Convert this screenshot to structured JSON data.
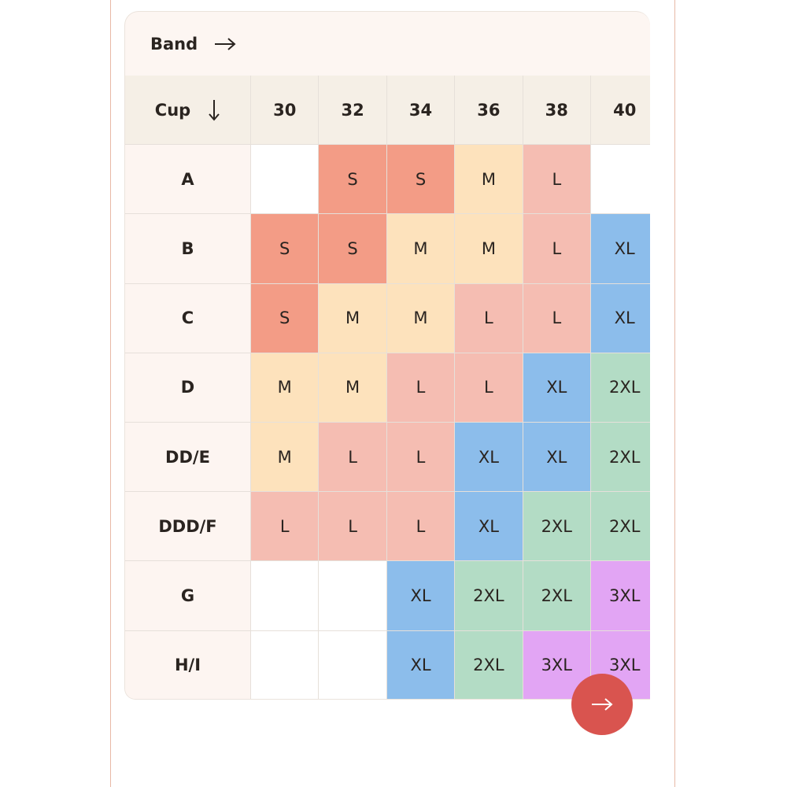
{
  "header": {
    "band_label": "Band"
  },
  "table": {
    "cup_label": "Cup",
    "columns": [
      "30",
      "32",
      "34",
      "36",
      "38",
      "40"
    ],
    "rows": [
      {
        "cup": "A",
        "sizes": [
          null,
          "S",
          "S",
          "M",
          "L",
          null
        ]
      },
      {
        "cup": "B",
        "sizes": [
          "S",
          "S",
          "M",
          "M",
          "L",
          "XL"
        ]
      },
      {
        "cup": "C",
        "sizes": [
          "S",
          "M",
          "M",
          "L",
          "L",
          "XL"
        ]
      },
      {
        "cup": "D",
        "sizes": [
          "M",
          "M",
          "L",
          "L",
          "XL",
          "2XL"
        ]
      },
      {
        "cup": "DD/E",
        "sizes": [
          "M",
          "L",
          "L",
          "XL",
          "XL",
          "2XL"
        ]
      },
      {
        "cup": "DDD/F",
        "sizes": [
          "L",
          "L",
          "L",
          "XL",
          "2XL",
          "2XL"
        ]
      },
      {
        "cup": "G",
        "sizes": [
          null,
          null,
          "XL",
          "2XL",
          "2XL",
          "3XL"
        ]
      },
      {
        "cup": "H/I",
        "sizes": [
          null,
          null,
          "XL",
          "2XL",
          "3XL",
          "3XL"
        ]
      }
    ],
    "size_colors": {
      "S": "#f39c86",
      "M": "#fde2bc",
      "L": "#f5bdb2",
      "XL": "#8cbdeb",
      "2XL": "#b3dcc5",
      "3XL": "#e2a5f4"
    }
  }
}
